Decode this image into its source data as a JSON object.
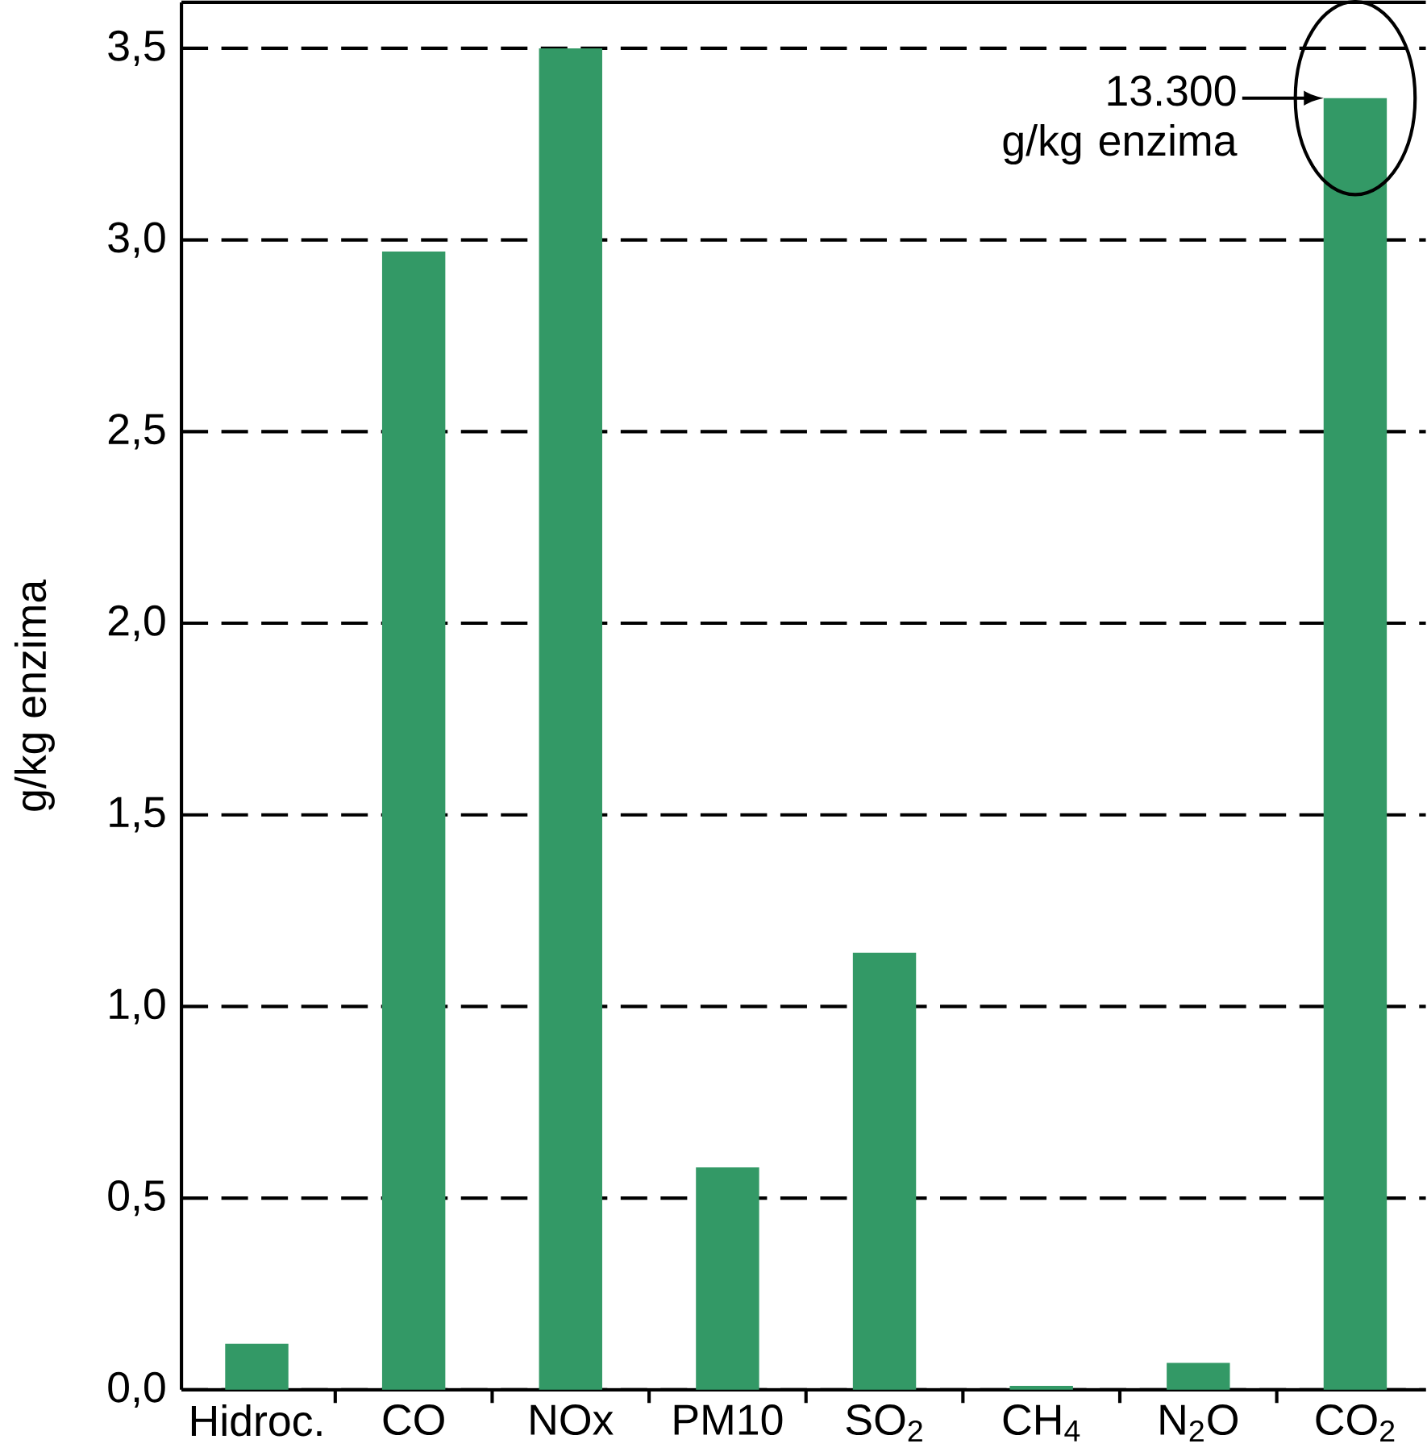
{
  "chart_data": {
    "type": "bar",
    "ylabel": "g/kg enzima",
    "categories": [
      "Hidroc.",
      "CO",
      "NOx",
      "PM10",
      "SO$_{2}$",
      "CH$_{4}$",
      "N$_{2}$O",
      "CO$_{2}$"
    ],
    "values": [
      0.12,
      2.97,
      3.5,
      0.58,
      1.14,
      0.01,
      0.07,
      3.37
    ],
    "color": "#339966",
    "ylim": [
      0,
      3.62
    ],
    "yticks": [
      {
        "value": 0,
        "label": "0,0"
      },
      {
        "value": 0.5,
        "label": "0,5"
      },
      {
        "value": 1,
        "label": "1,0"
      },
      {
        "value": 1.5,
        "label": "1,5"
      },
      {
        "value": 2,
        "label": "2,0"
      },
      {
        "value": 2.5,
        "label": "2,5"
      },
      {
        "value": 3,
        "label": "3,0"
      },
      {
        "value": 3.5,
        "label": "3,5"
      }
    ],
    "grid": "y",
    "annotations": [
      {
        "text": "13.300 g/kg enzima",
        "x": "CO$_{2}$",
        "y": 3.37
      }
    ]
  }
}
